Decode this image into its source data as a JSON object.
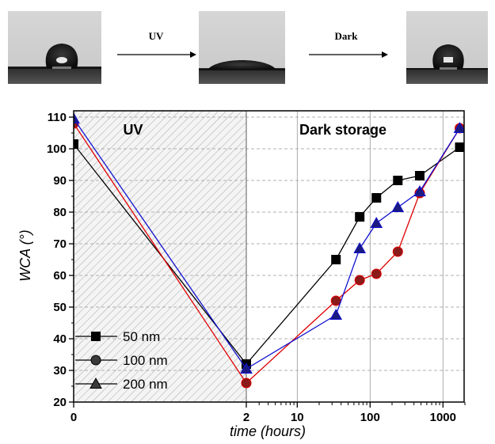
{
  "images": [
    {
      "name": "droplet-before-uv-image"
    },
    {
      "name": "droplet-after-uv-image"
    },
    {
      "name": "droplet-after-dark-image"
    }
  ],
  "arrows": [
    {
      "label": "UV"
    },
    {
      "label": "Dark"
    }
  ],
  "colors": {
    "series_50": "#000000",
    "series_100": "#e00000",
    "series_200": "#1010d0",
    "marker_100_fill": "#8b1a1a",
    "marker_200_fill": "#1a1a80",
    "grid": "#999999"
  },
  "chart_data": {
    "type": "line",
    "xlabel": "time (hours)",
    "ylabel": "WCA (°)",
    "x_scale": "broken: linear 0–2 (UV), log 2–2000 (dark storage)",
    "x_ticks": [
      {
        "value": 0,
        "label": "0"
      },
      {
        "value": 2,
        "label": "2"
      },
      {
        "value": 10,
        "label": "10"
      },
      {
        "value": 100,
        "label": "100"
      },
      {
        "value": 1000,
        "label": "1000"
      }
    ],
    "ylim": [
      20,
      112
    ],
    "y_ticks": [
      20,
      30,
      40,
      50,
      60,
      70,
      80,
      90,
      100,
      110
    ],
    "grid": true,
    "regions": [
      {
        "label": "UV",
        "x_range": [
          0,
          2
        ],
        "pattern": "hatched"
      },
      {
        "label": "Dark storage",
        "x_range": [
          2,
          2000
        ]
      }
    ],
    "legend_position": "bottom-left",
    "series": [
      {
        "name": "50 nm",
        "marker": "square",
        "color": "#000000",
        "points": [
          [
            0,
            101.5
          ],
          [
            2,
            32
          ],
          [
            34,
            65
          ],
          [
            72,
            78.5
          ],
          [
            122,
            84.5
          ],
          [
            240,
            90
          ],
          [
            480,
            91.5
          ],
          [
            1700,
            100.5
          ]
        ]
      },
      {
        "name": "100 nm",
        "marker": "circle",
        "color": "#e00000",
        "points": [
          [
            0,
            108
          ],
          [
            2,
            26
          ],
          [
            34,
            52
          ],
          [
            72,
            58.5
          ],
          [
            122,
            60.5
          ],
          [
            240,
            67.5
          ],
          [
            480,
            86
          ],
          [
            1700,
            106.5
          ]
        ]
      },
      {
        "name": "200 nm",
        "marker": "triangle",
        "color": "#1010d0",
        "points": [
          [
            0,
            109.5
          ],
          [
            2,
            30.5
          ],
          [
            34,
            47.5
          ],
          [
            72,
            68.5
          ],
          [
            122,
            76.5
          ],
          [
            240,
            81.5
          ],
          [
            480,
            86.5
          ],
          [
            1700,
            106.5
          ]
        ]
      }
    ]
  }
}
